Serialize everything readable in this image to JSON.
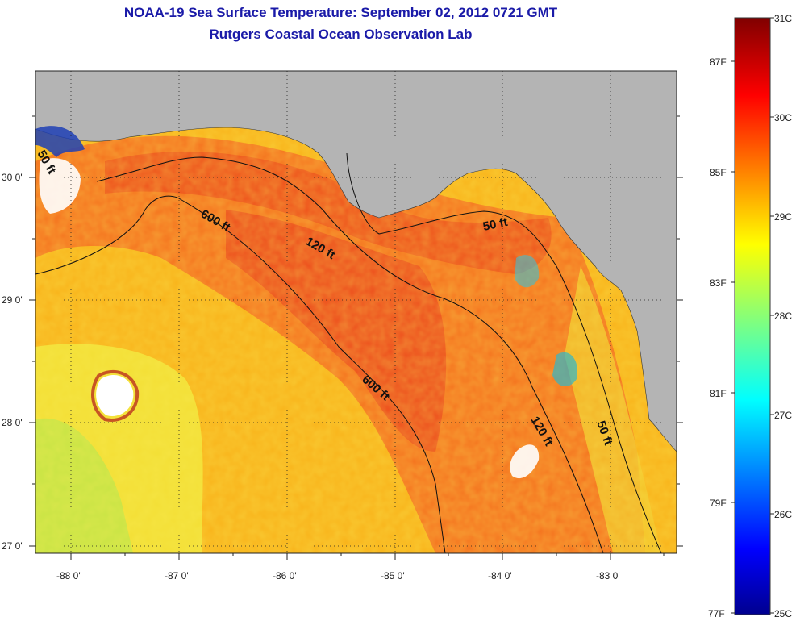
{
  "header": {
    "title": "NOAA-19 Sea Surface Temperature:  September 02, 2012 0721 GMT",
    "subtitle": "Rutgers Coastal Ocean Observation Lab"
  },
  "axes": {
    "lon_ticks": [
      "-88 0'",
      "-87 0'",
      "-86 0'",
      "-85 0'",
      "-84 0'",
      "-83 0'"
    ],
    "lat_ticks": [
      "30 0'",
      "29 0'",
      "28 0'",
      "27 0'"
    ]
  },
  "contours": {
    "labels": [
      "600 ft",
      "120 ft",
      "50 ft",
      "600 ft",
      "120 ft",
      "50 ft",
      "50 ft"
    ]
  },
  "colorbar": {
    "celsius": [
      "31C",
      "30C",
      "29C",
      "28C",
      "27C",
      "26C",
      "25C"
    ],
    "fahrenheit": [
      "87F",
      "85F",
      "83F",
      "81F",
      "79F",
      "77F"
    ],
    "range_c": [
      25,
      31
    ]
  },
  "colors": {
    "land": "#b4b4b4",
    "warm": "#f46d1e",
    "hot": "#e8361a",
    "mild": "#f9b31a",
    "cool": "#f2e338",
    "cloud": "#ffffff",
    "title": "#1a1aa8"
  }
}
